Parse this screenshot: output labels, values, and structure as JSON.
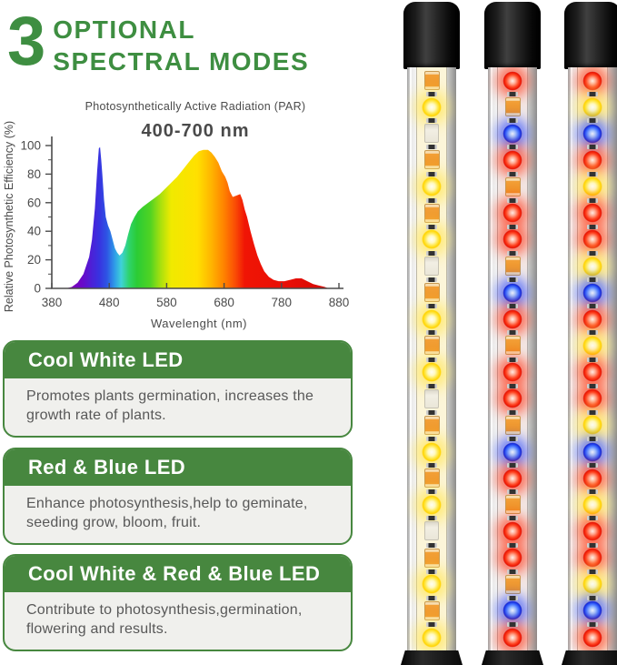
{
  "header": {
    "number": "3",
    "line1": "OPTIONAL",
    "line2": "SPECTRAL MODES"
  },
  "colors": {
    "accent_green": "#3e8e41",
    "box_green": "#47873f",
    "box_body_bg": "#f0f0ed",
    "body_text": "#585858",
    "axis": "#4b4b4b"
  },
  "chart_data": {
    "type": "area",
    "title": "Photosynthetically Active Radiation (PAR)",
    "subtitle": "400-700 nm",
    "xlabel": "Wavelenght (nm)",
    "ylabel": "Relative Photosynthetic Efficiency (%)",
    "xlim": [
      380,
      880
    ],
    "ylim": [
      0,
      100
    ],
    "x_ticks": [
      380,
      480,
      580,
      680,
      780,
      880
    ],
    "y_ticks": [
      0,
      20,
      40,
      60,
      80,
      100
    ],
    "grid": false,
    "legend": false,
    "series": [
      {
        "name": "Relative Photosynthetic Efficiency",
        "points": [
          [
            405,
            0
          ],
          [
            415,
            1
          ],
          [
            425,
            4
          ],
          [
            435,
            10
          ],
          [
            445,
            22
          ],
          [
            450,
            34
          ],
          [
            455,
            56
          ],
          [
            459,
            82
          ],
          [
            462,
            98
          ],
          [
            464,
            99
          ],
          [
            466,
            90
          ],
          [
            468,
            80
          ],
          [
            471,
            62
          ],
          [
            474,
            50
          ],
          [
            478,
            44
          ],
          [
            482,
            40
          ],
          [
            486,
            34
          ],
          [
            490,
            28
          ],
          [
            494,
            25
          ],
          [
            498,
            23
          ],
          [
            503,
            25
          ],
          [
            508,
            30
          ],
          [
            513,
            38
          ],
          [
            518,
            45
          ],
          [
            524,
            50
          ],
          [
            530,
            54
          ],
          [
            538,
            57
          ],
          [
            548,
            60
          ],
          [
            558,
            63
          ],
          [
            568,
            66
          ],
          [
            578,
            70
          ],
          [
            588,
            74
          ],
          [
            598,
            78
          ],
          [
            608,
            83
          ],
          [
            618,
            88
          ],
          [
            628,
            93
          ],
          [
            636,
            96
          ],
          [
            644,
            97
          ],
          [
            652,
            97
          ],
          [
            658,
            95
          ],
          [
            664,
            92
          ],
          [
            670,
            88
          ],
          [
            676,
            82
          ],
          [
            682,
            78
          ],
          [
            686,
            74
          ],
          [
            690,
            68
          ],
          [
            695,
            64
          ],
          [
            702,
            65
          ],
          [
            708,
            66
          ],
          [
            712,
            62
          ],
          [
            716,
            55
          ],
          [
            720,
            50
          ],
          [
            726,
            40
          ],
          [
            732,
            31
          ],
          [
            738,
            23
          ],
          [
            744,
            17
          ],
          [
            750,
            12
          ],
          [
            758,
            8
          ],
          [
            766,
            6
          ],
          [
            775,
            5
          ],
          [
            785,
            5
          ],
          [
            795,
            6
          ],
          [
            805,
            7
          ],
          [
            815,
            7
          ],
          [
            825,
            5
          ],
          [
            835,
            3
          ],
          [
            845,
            2
          ],
          [
            855,
            1
          ],
          [
            862,
            0
          ]
        ]
      }
    ],
    "spectrum_gradient": [
      {
        "o": 0.0,
        "c": "#8a00b4"
      },
      {
        "o": 0.06,
        "c": "#6a08c8"
      },
      {
        "o": 0.1,
        "c": "#4a22d8"
      },
      {
        "o": 0.125,
        "c": "#3832e0"
      },
      {
        "o": 0.155,
        "c": "#2e54e4"
      },
      {
        "o": 0.185,
        "c": "#2f9ce8"
      },
      {
        "o": 0.21,
        "c": "#3fd2d8"
      },
      {
        "o": 0.24,
        "c": "#2ed36a"
      },
      {
        "o": 0.27,
        "c": "#2bcc35"
      },
      {
        "o": 0.32,
        "c": "#4fd323"
      },
      {
        "o": 0.36,
        "c": "#a8e00e"
      },
      {
        "o": 0.4,
        "c": "#f0ea00"
      },
      {
        "o": 0.5,
        "c": "#ffe000"
      },
      {
        "o": 0.555,
        "c": "#ffb300"
      },
      {
        "o": 0.6,
        "c": "#ff8400"
      },
      {
        "o": 0.645,
        "c": "#fa4c05"
      },
      {
        "o": 0.68,
        "c": "#f01505"
      },
      {
        "o": 0.85,
        "c": "#e80e06"
      },
      {
        "o": 1.0,
        "c": "#d40a04"
      }
    ]
  },
  "modes": [
    {
      "title": "Cool White LED",
      "description": "Promotes plants germination, increases the growth rate of plants."
    },
    {
      "title": "Red & Blue LED",
      "description": "Enhance photosynthesis,help to geminate, seeding grow, bloom, fruit."
    },
    {
      "title": "Cool White & Red & Blue LED",
      "description": "Contribute to photosynthesis,germination, flowering and results."
    }
  ],
  "tubes": [
    {
      "name": "cool-white-tube",
      "tint": "#fcf5d9",
      "leds": [
        "chip",
        "yellow",
        "white",
        "chip",
        "yellow",
        "chip",
        "yellow",
        "white",
        "chip",
        "yellow",
        "chip",
        "yellow",
        "white",
        "chip",
        "yellow",
        "chip",
        "yellow",
        "white",
        "chip",
        "yellow",
        "chip",
        "yellow"
      ]
    },
    {
      "name": "red-blue-tube",
      "tint": "#f2e9e6",
      "leds": [
        "red",
        "chip",
        "blue",
        "red",
        "chip",
        "red",
        "red",
        "chip",
        "blue",
        "red",
        "chip",
        "red",
        "red",
        "chip",
        "blue",
        "red",
        "chip",
        "red",
        "red",
        "chip",
        "blue",
        "red"
      ]
    },
    {
      "name": "mixed-tube",
      "tint": "#f7efdf",
      "leds": [
        "red",
        "yellow",
        "blue",
        "red",
        "yellow",
        "red",
        "red",
        "yellow",
        "blue",
        "red",
        "yellow",
        "red",
        "red",
        "yellow",
        "blue",
        "red",
        "yellow",
        "red",
        "red",
        "yellow",
        "blue",
        "red"
      ]
    }
  ]
}
